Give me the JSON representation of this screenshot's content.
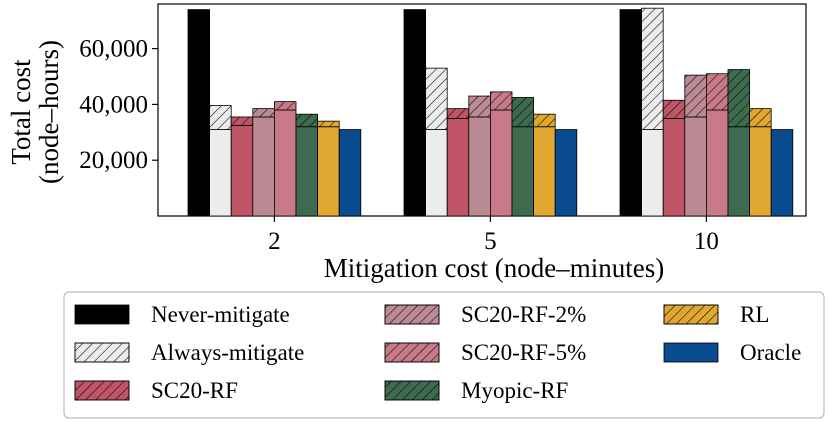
{
  "chart_data": {
    "type": "bar",
    "title": "",
    "xlabel": "Mitigation cost (node–minutes)",
    "ylabel_line1": "Total cost",
    "ylabel_line2": "(node–hours)",
    "categories": [
      "2",
      "5",
      "10"
    ],
    "ylim": [
      0,
      76000
    ],
    "yticks": [
      20000,
      40000,
      60000
    ],
    "ytick_labels": [
      "20,000",
      "40,000",
      "60,000"
    ],
    "grid": false,
    "legend_position": "bottom",
    "series": [
      {
        "name": "Never-mitigate",
        "color": "#000000",
        "base": [
          74000,
          74000,
          74000
        ],
        "extra": [
          0,
          0,
          0
        ]
      },
      {
        "name": "Always-mitigate",
        "color": "#ececec",
        "base": [
          31000,
          31000,
          31000
        ],
        "extra": [
          8600,
          22000,
          43500
        ]
      },
      {
        "name": "SC20-RF",
        "color": "#c05568",
        "base": [
          32500,
          35000,
          35000
        ],
        "extra": [
          3000,
          3500,
          6500
        ]
      },
      {
        "name": "SC20-RF-2%",
        "color": "#bc8a94",
        "base": [
          35500,
          35500,
          35500
        ],
        "extra": [
          3000,
          7500,
          15000
        ]
      },
      {
        "name": "SC20-RF-5%",
        "color": "#c97a88",
        "base": [
          38000,
          38000,
          38000
        ],
        "extra": [
          3000,
          6500,
          13000
        ]
      },
      {
        "name": "Myopic-RF",
        "color": "#3e6b4e",
        "base": [
          32000,
          32000,
          32000
        ],
        "extra": [
          4500,
          10500,
          20500
        ]
      },
      {
        "name": "RL",
        "color": "#e0a830",
        "base": [
          32000,
          32000,
          32000
        ],
        "extra": [
          2000,
          4500,
          6500
        ]
      },
      {
        "name": "Oracle",
        "color": "#0a4a8f",
        "base": [
          31000,
          31000,
          31000
        ],
        "extra": [
          0,
          0,
          0
        ]
      }
    ],
    "legend_order": [
      [
        "Never-mitigate",
        "SC20-RF-2%",
        "RL"
      ],
      [
        "Always-mitigate",
        "SC20-RF-5%",
        "Oracle"
      ],
      [
        "SC20-RF",
        "Myopic-RF"
      ]
    ]
  }
}
